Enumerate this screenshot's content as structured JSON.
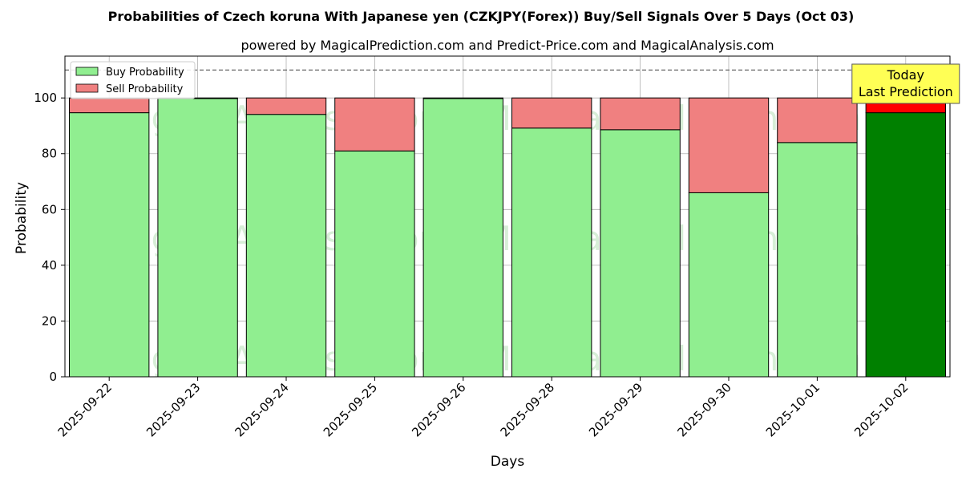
{
  "chart_data": {
    "type": "bar",
    "stacked": true,
    "title": "Probabilities of Czech koruna With Japanese yen (CZKJPY(Forex)) Buy/Sell Signals Over 5 Days (Oct 03)",
    "subtitle": "powered by MagicalPrediction.com and Predict-Price.com and MagicalAnalysis.com",
    "xlabel": "Days",
    "ylabel": "Probability",
    "ylim": [
      0,
      115
    ],
    "yticks": [
      0,
      20,
      40,
      60,
      80,
      100
    ],
    "grid": true,
    "legend_position": "top-left",
    "categories": [
      "2025-09-22",
      "2025-09-23",
      "2025-09-24",
      "2025-09-25",
      "2025-09-26",
      "2025-09-28",
      "2025-09-29",
      "2025-09-30",
      "2025-10-01",
      "2025-10-02"
    ],
    "series": [
      {
        "name": "Buy Probability",
        "color": "#90ee90",
        "values": [
          94.7,
          99.8,
          94.1,
          81.0,
          99.8,
          89.2,
          88.6,
          66.0,
          84.0,
          94.7
        ]
      },
      {
        "name": "Sell Probability",
        "color": "#f08080",
        "values": [
          5.3,
          0.2,
          5.9,
          19.0,
          0.2,
          10.8,
          11.4,
          34.0,
          16.0,
          5.3
        ]
      }
    ],
    "highlight": {
      "index": 9,
      "buy_color": "#008000",
      "sell_color": "#ff0000"
    },
    "reference_line": {
      "y": 110,
      "style": "dashed"
    },
    "annotation": {
      "lines": [
        "Today",
        "Last Prediction"
      ],
      "background": "#ffff55"
    },
    "watermarks": [
      "MagicalAnalysis.com",
      "MagicalPrediction.com"
    ]
  }
}
